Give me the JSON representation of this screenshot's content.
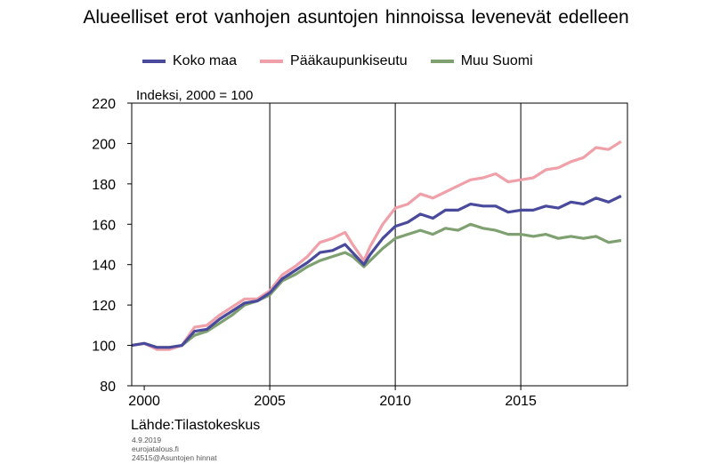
{
  "title": "Alueelliset erot vanhojen asuntojen hinnoissa levenevät edelleen",
  "index_label": "Indeksi, 2000 = 100",
  "source": "Lähde:Tilastokeskus",
  "meta": {
    "date": "4.9.2019",
    "site": "eurojatalous.fi",
    "ref": "24515@Asuntojen hinnat"
  },
  "chart_data": {
    "type": "line",
    "title": "Alueelliset erot vanhojen asuntojen hinnoissa levenevät edelleen",
    "ylabel": "Indeksi, 2000 = 100",
    "xlabel": "",
    "xlim": [
      1999.5,
      2019.25
    ],
    "ylim": [
      80,
      220
    ],
    "x_ticks": [
      2000,
      2005,
      2010,
      2015
    ],
    "y_ticks": [
      80,
      100,
      120,
      140,
      160,
      180,
      200,
      220
    ],
    "vertical_gridlines": [
      2005,
      2010,
      2015
    ],
    "legend_position": "top",
    "series": [
      {
        "name": "Koko maa",
        "color": "#4a4a9c",
        "points": [
          [
            1999.5,
            100
          ],
          [
            2000,
            101
          ],
          [
            2000.5,
            99
          ],
          [
            2001,
            99
          ],
          [
            2001.5,
            100
          ],
          [
            2002,
            107
          ],
          [
            2002.5,
            108
          ],
          [
            2003,
            113
          ],
          [
            2003.5,
            117
          ],
          [
            2004,
            121
          ],
          [
            2004.5,
            122
          ],
          [
            2005,
            126
          ],
          [
            2005.5,
            133
          ],
          [
            2006,
            137
          ],
          [
            2006.5,
            141
          ],
          [
            2007,
            146
          ],
          [
            2007.5,
            147
          ],
          [
            2008,
            150
          ],
          [
            2008.3,
            146
          ],
          [
            2008.75,
            140
          ],
          [
            2009,
            145
          ],
          [
            2009.5,
            153
          ],
          [
            2010,
            159
          ],
          [
            2010.5,
            161
          ],
          [
            2011,
            165
          ],
          [
            2011.5,
            163
          ],
          [
            2012,
            167
          ],
          [
            2012.5,
            167
          ],
          [
            2013,
            170
          ],
          [
            2013.5,
            169
          ],
          [
            2014,
            169
          ],
          [
            2014.5,
            166
          ],
          [
            2015,
            167
          ],
          [
            2015.5,
            167
          ],
          [
            2016,
            169
          ],
          [
            2016.5,
            168
          ],
          [
            2017,
            171
          ],
          [
            2017.5,
            170
          ],
          [
            2018,
            173
          ],
          [
            2018.5,
            171
          ],
          [
            2019,
            174
          ]
        ]
      },
      {
        "name": "Pääkaupunkiseutu",
        "color": "#f0a0a8",
        "points": [
          [
            1999.5,
            100
          ],
          [
            2000,
            101
          ],
          [
            2000.5,
            98
          ],
          [
            2001,
            98
          ],
          [
            2001.5,
            100
          ],
          [
            2002,
            109
          ],
          [
            2002.5,
            110
          ],
          [
            2003,
            115
          ],
          [
            2003.5,
            119
          ],
          [
            2004,
            123
          ],
          [
            2004.5,
            123
          ],
          [
            2005,
            127
          ],
          [
            2005.5,
            135
          ],
          [
            2006,
            139
          ],
          [
            2006.5,
            144
          ],
          [
            2007,
            151
          ],
          [
            2007.5,
            153
          ],
          [
            2008,
            156
          ],
          [
            2008.3,
            150
          ],
          [
            2008.75,
            142
          ],
          [
            2009,
            149
          ],
          [
            2009.5,
            160
          ],
          [
            2010,
            168
          ],
          [
            2010.5,
            170
          ],
          [
            2011,
            175
          ],
          [
            2011.5,
            173
          ],
          [
            2012,
            176
          ],
          [
            2012.5,
            179
          ],
          [
            2013,
            182
          ],
          [
            2013.5,
            183
          ],
          [
            2014,
            185
          ],
          [
            2014.5,
            181
          ],
          [
            2015,
            182
          ],
          [
            2015.5,
            183
          ],
          [
            2016,
            187
          ],
          [
            2016.5,
            188
          ],
          [
            2017,
            191
          ],
          [
            2017.5,
            193
          ],
          [
            2018,
            198
          ],
          [
            2018.5,
            197
          ],
          [
            2019,
            201
          ]
        ]
      },
      {
        "name": "Muu Suomi",
        "color": "#7fa070",
        "points": [
          [
            1999.5,
            100
          ],
          [
            2000,
            101
          ],
          [
            2000.5,
            99
          ],
          [
            2001,
            99
          ],
          [
            2001.5,
            100
          ],
          [
            2002,
            105
          ],
          [
            2002.5,
            107
          ],
          [
            2003,
            111
          ],
          [
            2003.5,
            115
          ],
          [
            2004,
            120
          ],
          [
            2004.5,
            122
          ],
          [
            2005,
            125
          ],
          [
            2005.5,
            132
          ],
          [
            2006,
            135
          ],
          [
            2006.5,
            139
          ],
          [
            2007,
            142
          ],
          [
            2007.5,
            144
          ],
          [
            2008,
            146
          ],
          [
            2008.3,
            144
          ],
          [
            2008.75,
            139
          ],
          [
            2009,
            142
          ],
          [
            2009.5,
            148
          ],
          [
            2010,
            153
          ],
          [
            2010.5,
            155
          ],
          [
            2011,
            157
          ],
          [
            2011.5,
            155
          ],
          [
            2012,
            158
          ],
          [
            2012.5,
            157
          ],
          [
            2013,
            160
          ],
          [
            2013.5,
            158
          ],
          [
            2014,
            157
          ],
          [
            2014.5,
            155
          ],
          [
            2015,
            155
          ],
          [
            2015.5,
            154
          ],
          [
            2016,
            155
          ],
          [
            2016.5,
            153
          ],
          [
            2017,
            154
          ],
          [
            2017.5,
            153
          ],
          [
            2018,
            154
          ],
          [
            2018.5,
            151
          ],
          [
            2019,
            152
          ]
        ]
      }
    ]
  }
}
